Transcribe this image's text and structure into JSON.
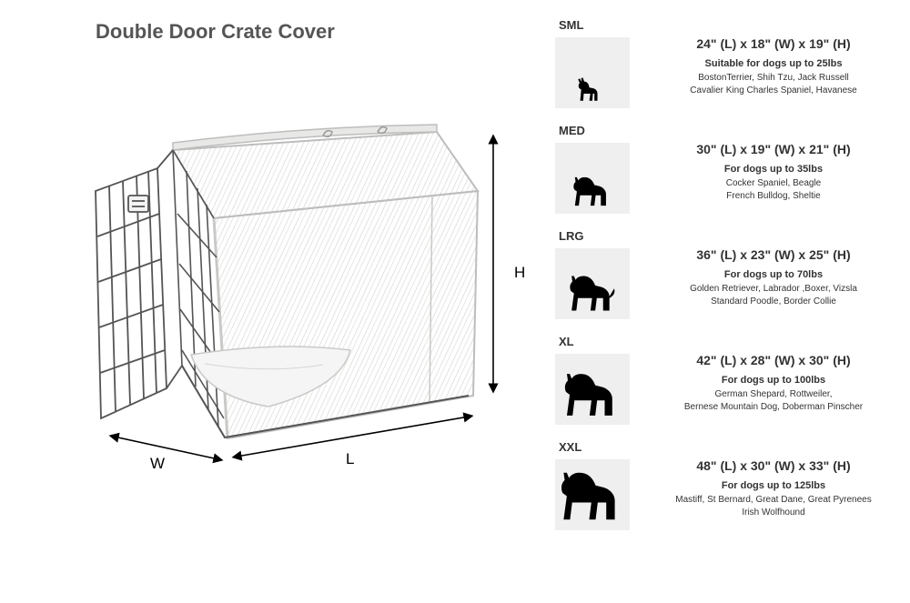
{
  "title": "Double Door Crate Cover",
  "dim_labels": {
    "H": "H",
    "L": "L",
    "W": "W"
  },
  "illustration": {
    "cover_fill": "#f0f0ef",
    "cover_stroke": "#bdbdbd",
    "wire_color": "#555555",
    "bed_fill": "#f5f5f5",
    "arrow_color": "#000000"
  },
  "size_box": {
    "bg": "#efefef"
  },
  "sizes": [
    {
      "code": "SML",
      "dimensions": "24\" (L) x 18\" (W) x 19\" (H)",
      "weight": "Suitable for dogs up to 25lbs",
      "breeds": "BostonTerrier, Shih Tzu, Jack Russell\nCavalier King Charles Spaniel, Havanese",
      "dog_scale": 0.45
    },
    {
      "code": "MED",
      "dimensions": "30\" (L) x 19\" (W) x 21\" (H)",
      "weight": "For dogs up to 35lbs",
      "breeds": "Cocker Spaniel, Beagle\nFrench Bulldog, Sheltie",
      "dog_scale": 0.58
    },
    {
      "code": "LRG",
      "dimensions": "36\" (L) x 23\" (W) x 25\" (H)",
      "weight": "For dogs up to 70lbs",
      "breeds": "Golden Retriever, Labrador ,Boxer, Vizsla\nStandard Poodle, Border Collie",
      "dog_scale": 0.7
    },
    {
      "code": "XL",
      "dimensions": "42\" (L) x 28\" (W) x 30\" (H)",
      "weight": "For dogs up to 100lbs",
      "breeds": "German Shepard, Rottweiler,\nBernese Mountain Dog, Doberman Pinscher",
      "dog_scale": 0.84
    },
    {
      "code": "XXL",
      "dimensions": "48\" (L) x 30\" (W) x 33\" (H)",
      "weight": "For dogs up to 125lbs",
      "breeds": "Mastiff, St Bernard, Great Dane, Great Pyrenees\nIrish Wolfhound",
      "dog_scale": 0.98
    }
  ]
}
